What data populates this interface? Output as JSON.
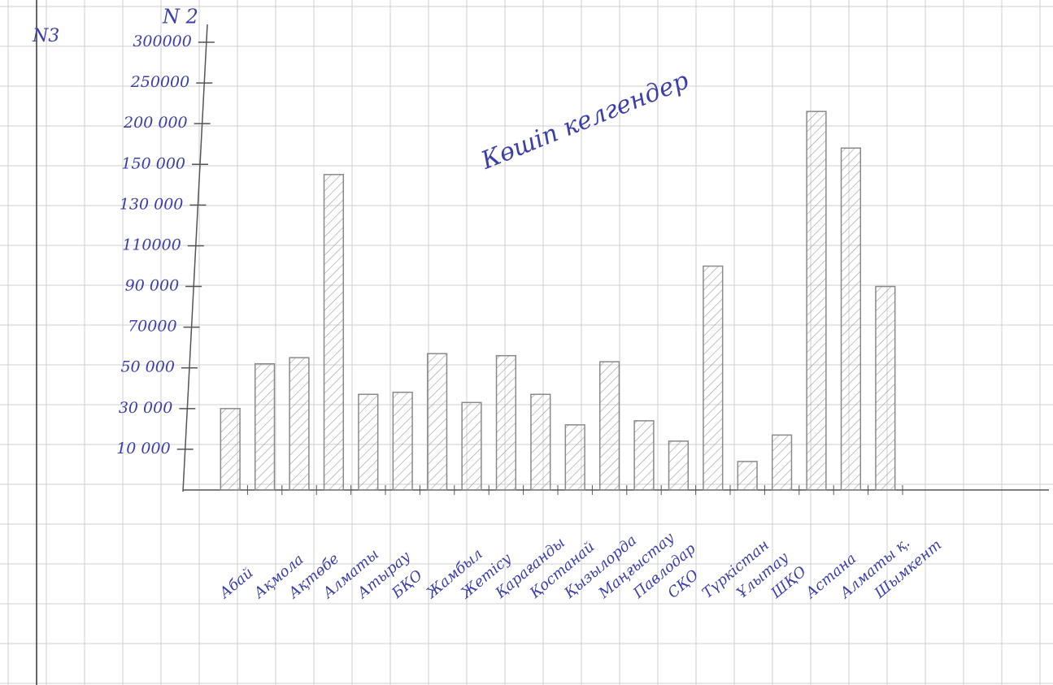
{
  "chart_data": {
    "type": "bar",
    "title": "Көшіп келгендер",
    "y_label": "N 2",
    "corner_label": "N3",
    "categories": [
      "Абай",
      "Ақмола",
      "Ақтөбе",
      "Алматы",
      "Атырау",
      "БҚО",
      "Жамбыл",
      "Жетісу",
      "Қарағанды",
      "Қостанай",
      "Қызылорда",
      "Маңғыстау",
      "Павлодар",
      "СҚО",
      "Түркістан",
      "Ұлытау",
      "ШҚО",
      "Астана",
      "Алматы қ.",
      "Шымкент"
    ],
    "values": [
      30000,
      52000,
      55000,
      145000,
      37000,
      38000,
      57000,
      33000,
      56000,
      37000,
      22000,
      53000,
      24000,
      14000,
      100000,
      7000,
      17000,
      215000,
      170000,
      90000
    ],
    "color": "#8a8a8a",
    "ylim": [
      0,
      300000
    ],
    "yticks": [
      {
        "value": 10000,
        "label": "10 000"
      },
      {
        "value": 30000,
        "label": "30 000"
      },
      {
        "value": 50000,
        "label": "50 000"
      },
      70000,
      {
        "value": 90000,
        "label": "90 000"
      },
      110000,
      {
        "value": 130000,
        "label": "130 000"
      },
      {
        "value": 150000,
        "label": "150 000"
      },
      {
        "value": 200000,
        "label": "200 000"
      },
      250000,
      300000
    ]
  }
}
